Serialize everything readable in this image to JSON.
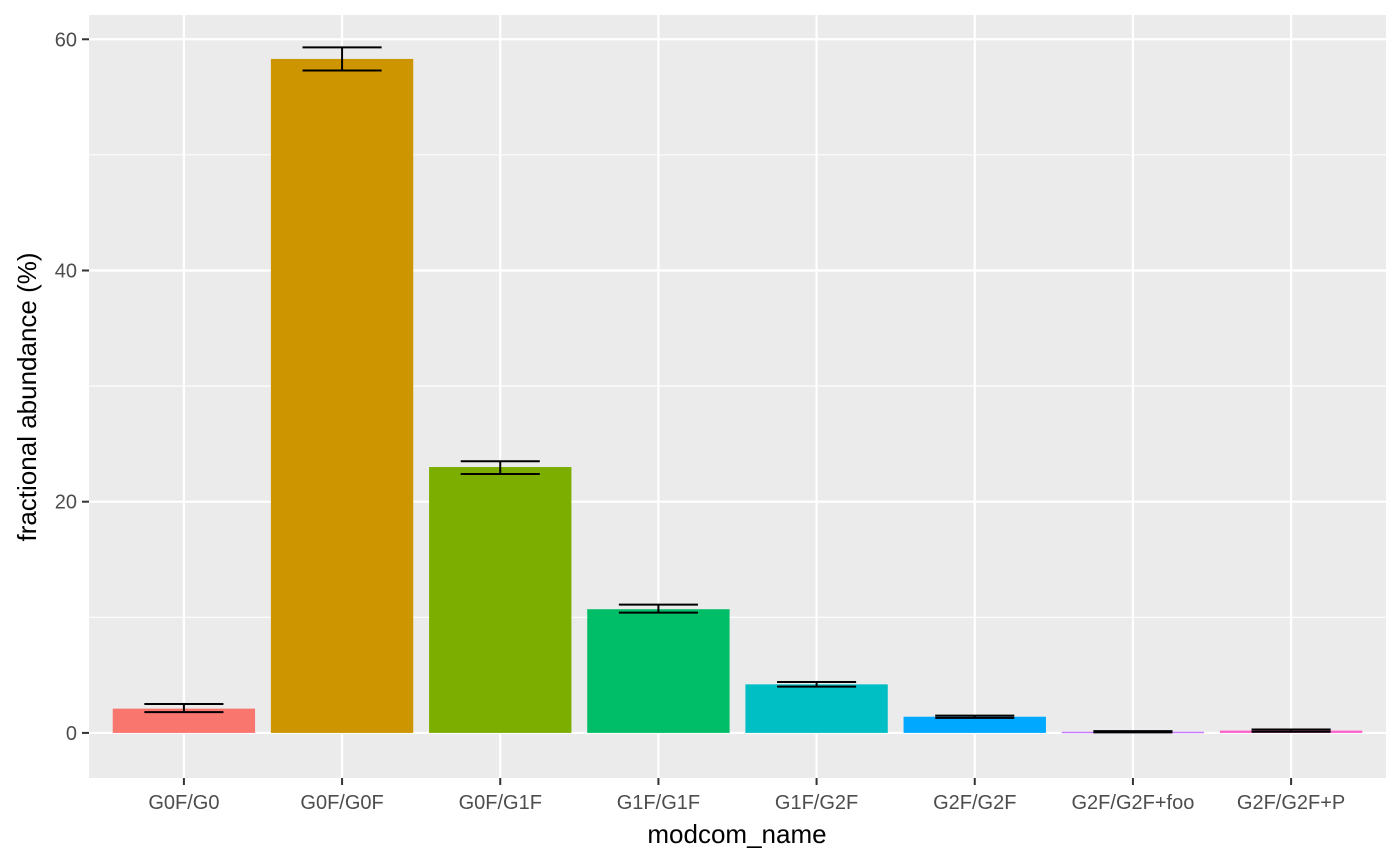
{
  "chart_data": {
    "type": "bar",
    "title": "",
    "xlabel": "modcom_name",
    "ylabel": "fractional abundance (%)",
    "categories": [
      "G0F/G0",
      "G0F/G0F",
      "G0F/G1F",
      "G1F/G1F",
      "G1F/G2F",
      "G2F/G2F",
      "G2F/G2F+foo",
      "G2F/G2F+P"
    ],
    "values": [
      2.1,
      58.3,
      23.0,
      10.7,
      4.2,
      1.4,
      0.1,
      0.2
    ],
    "error_low": [
      1.8,
      57.3,
      22.4,
      10.4,
      4.0,
      1.3,
      0.05,
      0.1
    ],
    "error_high": [
      2.5,
      59.3,
      23.5,
      11.1,
      4.4,
      1.5,
      0.15,
      0.3
    ],
    "colors": [
      "#F8766D",
      "#CD9600",
      "#7CAE00",
      "#00BE67",
      "#00BFC4",
      "#00A9FF",
      "#C77CFF",
      "#FF61CC"
    ],
    "ylim": [
      -3.9,
      62.1
    ],
    "yticks": [
      0,
      20,
      40,
      60
    ],
    "grid": true,
    "legend": "none",
    "panel_background": "#EBEBEB",
    "grid_color": "#FFFFFF",
    "errorbar_color": "#000000"
  }
}
